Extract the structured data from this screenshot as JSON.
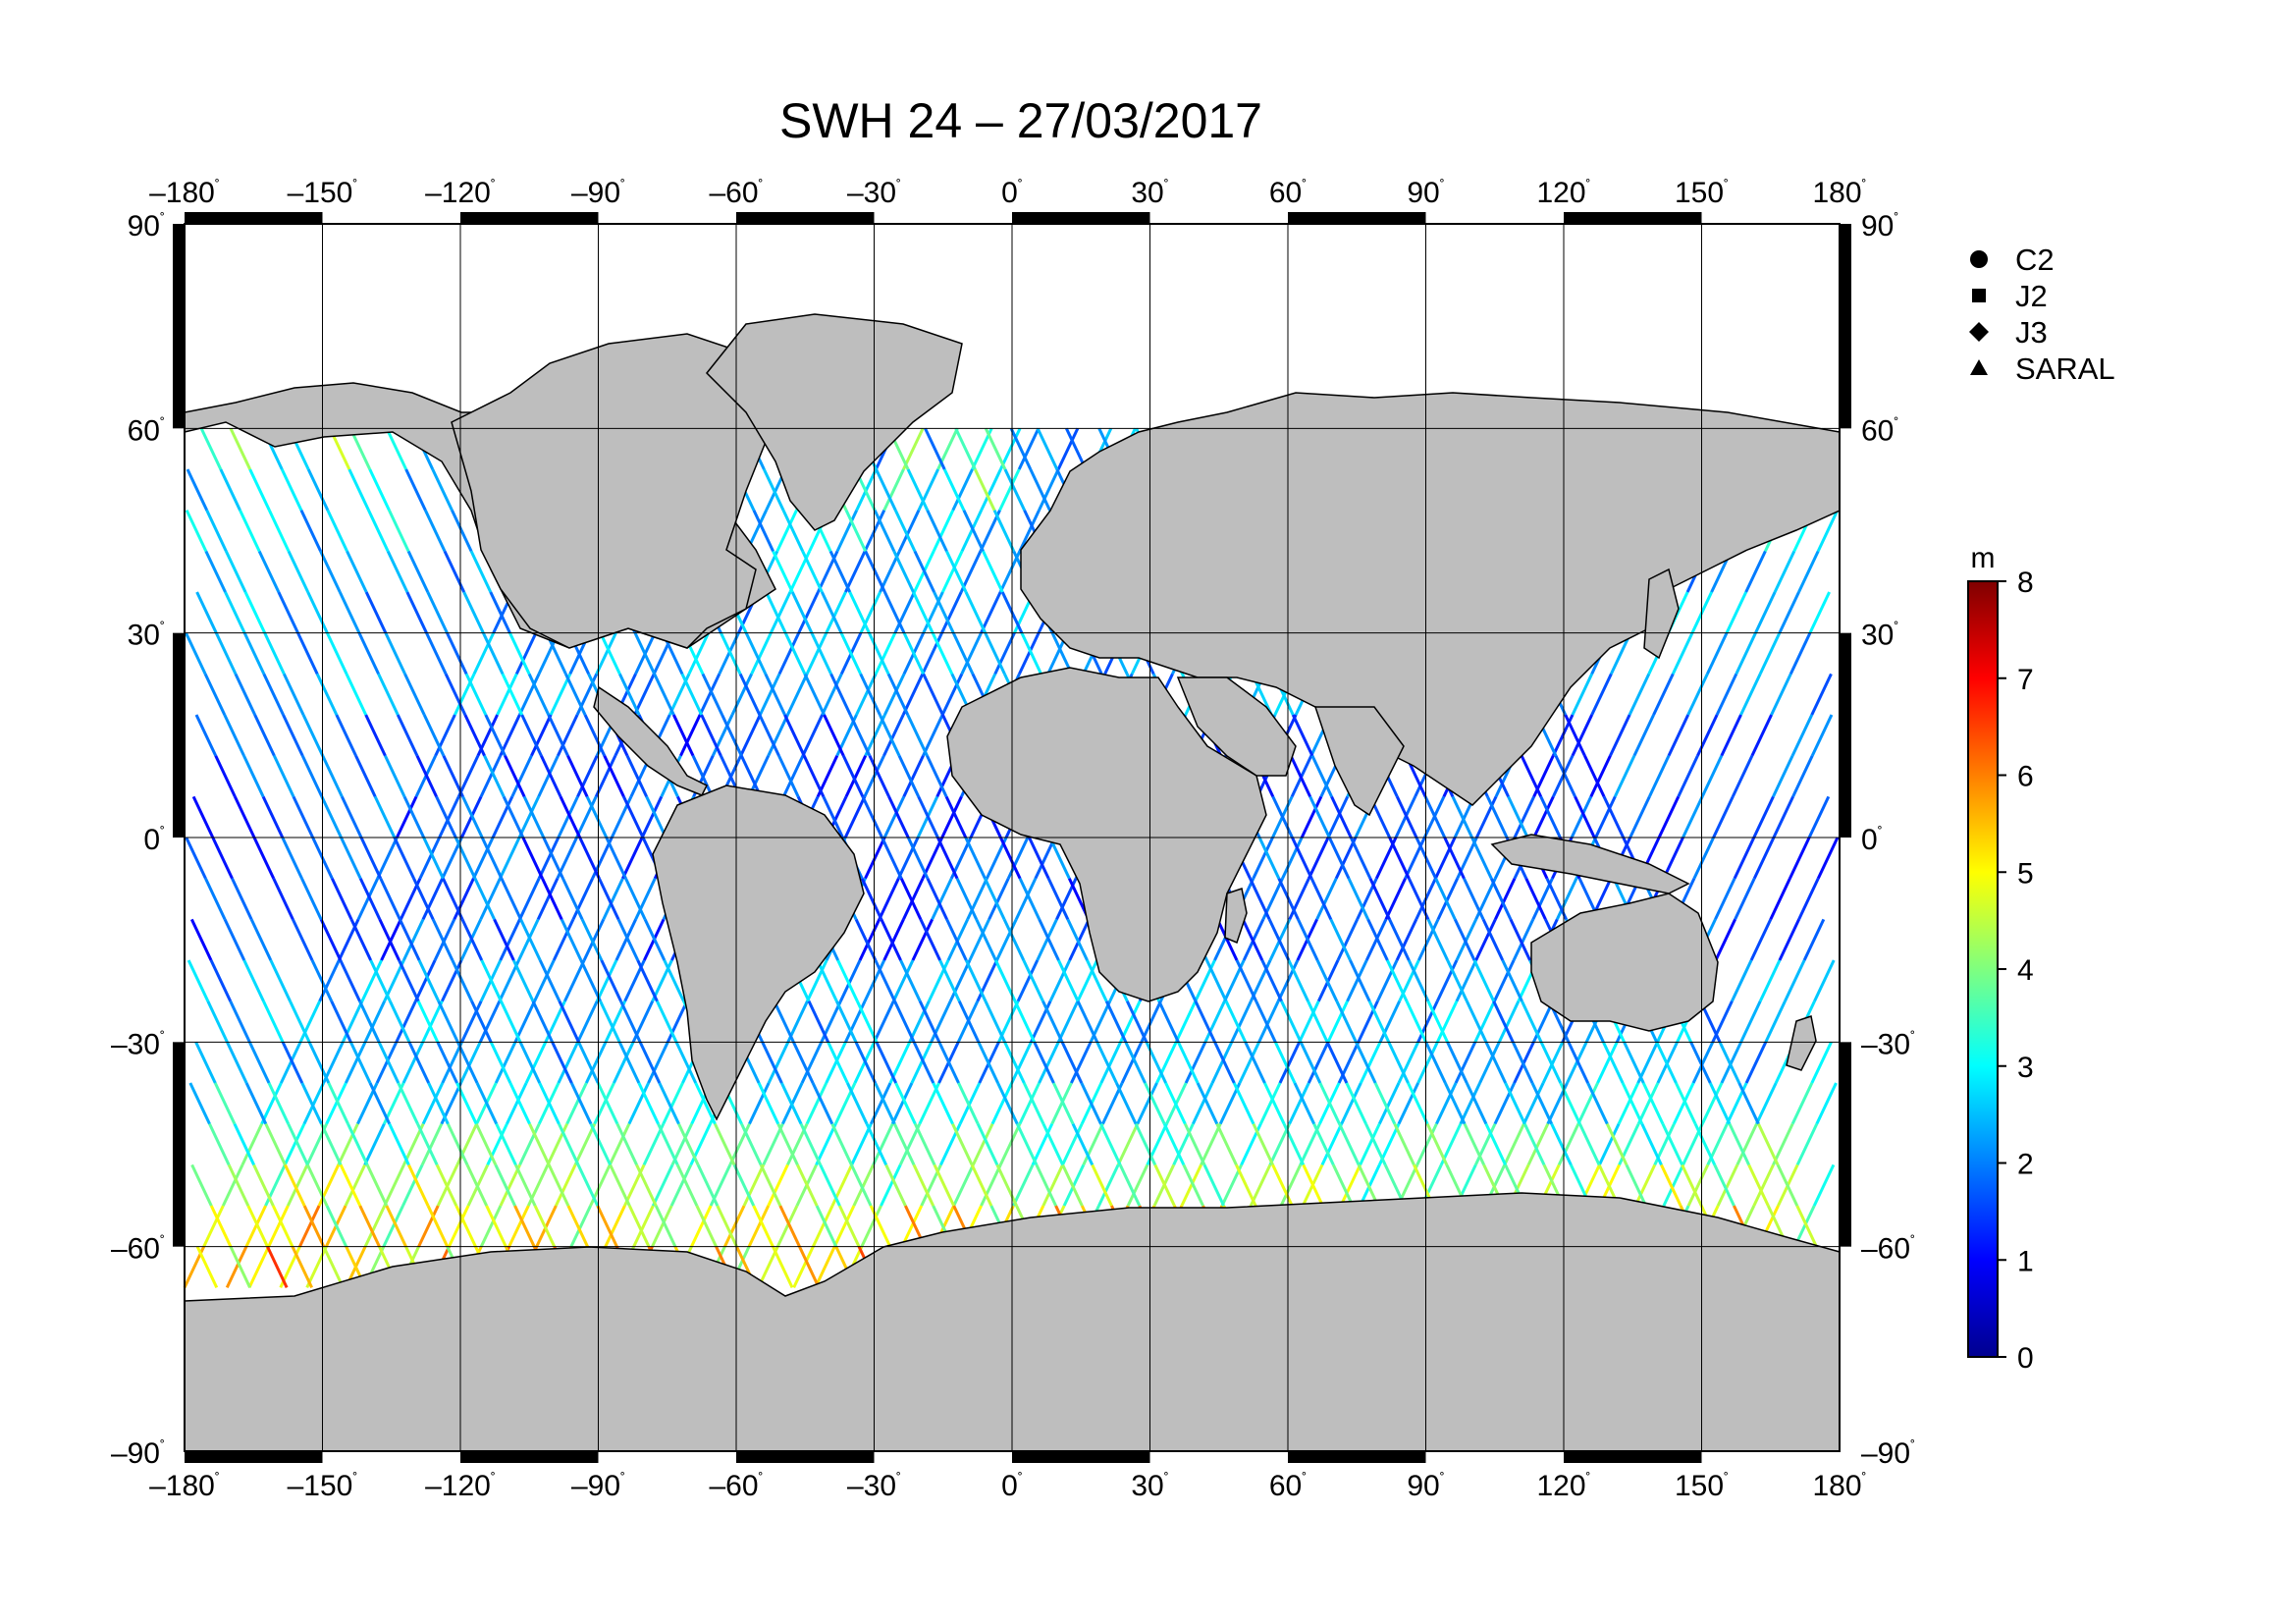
{
  "title": "SWH 24 – 27/03/2017",
  "map": {
    "projection": "equirectangular",
    "lon_range": [
      -180,
      180
    ],
    "lat_range": [
      -90,
      90
    ],
    "lon_ticks": [
      {
        "value": -180,
        "label": "–180"
      },
      {
        "value": -150,
        "label": "–150"
      },
      {
        "value": -120,
        "label": "–120"
      },
      {
        "value": -90,
        "label": "–90"
      },
      {
        "value": -60,
        "label": "–60"
      },
      {
        "value": -30,
        "label": "–30"
      },
      {
        "value": 0,
        "label": "0"
      },
      {
        "value": 30,
        "label": "30"
      },
      {
        "value": 60,
        "label": "60"
      },
      {
        "value": 90,
        "label": "90"
      },
      {
        "value": 120,
        "label": "120"
      },
      {
        "value": 150,
        "label": "150"
      },
      {
        "value": 180,
        "label": "180"
      }
    ],
    "lat_ticks": [
      {
        "value": 90,
        "label": "90"
      },
      {
        "value": 60,
        "label": "60"
      },
      {
        "value": 30,
        "label": "30"
      },
      {
        "value": 0,
        "label": "0"
      },
      {
        "value": -30,
        "label": "–30"
      },
      {
        "value": -60,
        "label": "–60"
      },
      {
        "value": -90,
        "label": "–90"
      }
    ],
    "degree_symbol": "˚",
    "land_color": "#bebebe",
    "ocean_color": "#ffffff",
    "grid": true
  },
  "legend": {
    "items": [
      {
        "symbol": "circle",
        "label": "C2"
      },
      {
        "symbol": "square",
        "label": "J2"
      },
      {
        "symbol": "diamond",
        "label": "J3"
      },
      {
        "symbol": "triangle",
        "label": "SARAL"
      }
    ]
  },
  "colorbar": {
    "unit": "m",
    "min": 0,
    "max": 8,
    "ticks": [
      "0",
      "1",
      "2",
      "3",
      "4",
      "5",
      "6",
      "7",
      "8"
    ],
    "colormap": [
      "#00008f",
      "#0000ff",
      "#007fff",
      "#00ffff",
      "#7fff7f",
      "#ffff00",
      "#ff7f00",
      "#ff0000",
      "#7f0000"
    ]
  }
}
